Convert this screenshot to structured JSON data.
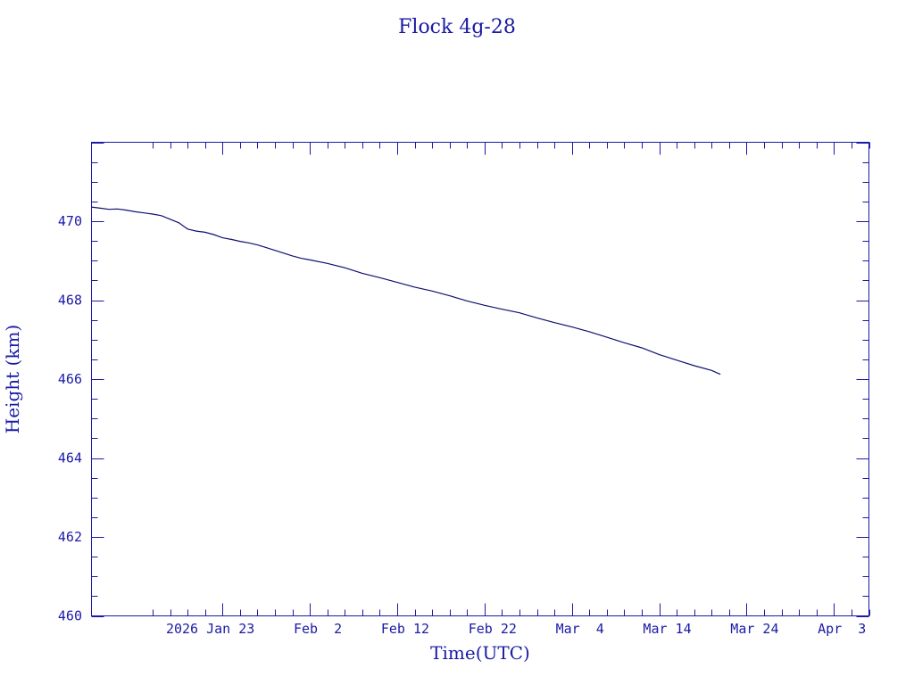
{
  "chart_data": {
    "type": "line",
    "title": "Flock 4g-28",
    "xlabel": "Time(UTC)",
    "ylabel": "Height (km)",
    "xlim": [
      "2026-01-08",
      "2026-04-07"
    ],
    "ylim": [
      460,
      472
    ],
    "grid": false,
    "x_ticks": [
      {
        "date": "2026-01-23",
        "label": "2026 Jan 23"
      },
      {
        "date": "2026-02-02",
        "label": "Feb  2"
      },
      {
        "date": "2026-02-12",
        "label": "Feb 12"
      },
      {
        "date": "2026-02-22",
        "label": "Feb 22"
      },
      {
        "date": "2026-03-04",
        "label": "Mar  4"
      },
      {
        "date": "2026-03-14",
        "label": "Mar 14"
      },
      {
        "date": "2026-03-24",
        "label": "Mar 24"
      },
      {
        "date": "2026-04-03",
        "label": "Apr  3"
      }
    ],
    "y_ticks": [
      460,
      462,
      464,
      466,
      468,
      470
    ],
    "series": [
      {
        "color": "#101070",
        "x": [
          "2026-01-08",
          "2026-01-09",
          "2026-01-10",
          "2026-01-11",
          "2026-01-12",
          "2026-01-13",
          "2026-01-14",
          "2026-01-15",
          "2026-01-16",
          "2026-01-17",
          "2026-01-18",
          "2026-01-19",
          "2026-01-20",
          "2026-01-21",
          "2026-01-22",
          "2026-01-23",
          "2026-01-24",
          "2026-01-25",
          "2026-01-26",
          "2026-01-27",
          "2026-01-28",
          "2026-01-29",
          "2026-01-30",
          "2026-01-31",
          "2026-02-01",
          "2026-02-02",
          "2026-02-04",
          "2026-02-06",
          "2026-02-08",
          "2026-02-10",
          "2026-02-12",
          "2026-02-14",
          "2026-02-16",
          "2026-02-18",
          "2026-02-20",
          "2026-02-22",
          "2026-02-24",
          "2026-02-26",
          "2026-02-28",
          "2026-03-02",
          "2026-03-04",
          "2026-03-06",
          "2026-03-08",
          "2026-03-10",
          "2026-03-12",
          "2026-03-14",
          "2026-03-16",
          "2026-03-18",
          "2026-03-20",
          "2026-03-21"
        ],
        "y": [
          470.36,
          470.33,
          470.3,
          470.31,
          470.28,
          470.24,
          470.21,
          470.18,
          470.14,
          470.05,
          469.96,
          469.8,
          469.75,
          469.72,
          469.66,
          469.58,
          469.54,
          469.49,
          469.45,
          469.4,
          469.33,
          469.26,
          469.19,
          469.12,
          469.06,
          469.02,
          468.93,
          468.82,
          468.68,
          468.57,
          468.45,
          468.33,
          468.23,
          468.11,
          467.98,
          467.87,
          467.77,
          467.68,
          467.55,
          467.43,
          467.32,
          467.2,
          467.06,
          466.92,
          466.79,
          466.62,
          466.48,
          466.34,
          466.22,
          466.12
        ]
      }
    ]
  }
}
